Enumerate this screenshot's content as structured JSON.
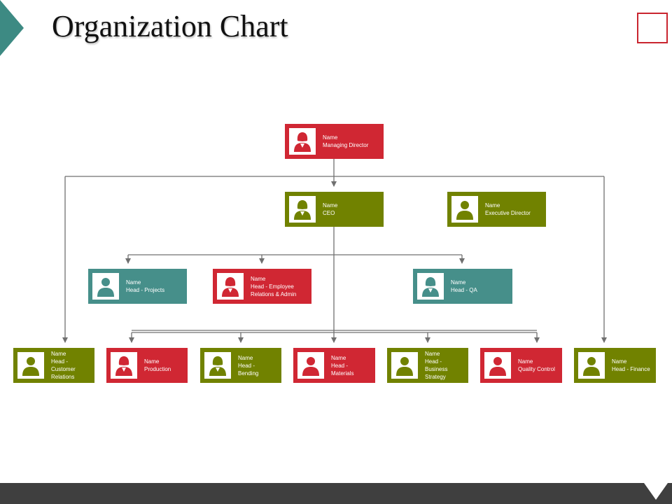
{
  "slide": {
    "title": "Organization Chart"
  },
  "colors": {
    "red": "#d02733",
    "olive": "#718200",
    "teal": "#468f8a",
    "line": "#707070"
  },
  "org": {
    "nodes": [
      {
        "id": "md",
        "name": "Name",
        "role": [
          "Managing Director"
        ],
        "color": "red",
        "icon": "female-person-icon"
      },
      {
        "id": "ceo",
        "name": "Name",
        "role": [
          "CEO"
        ],
        "color": "olive",
        "icon": "female-person-icon"
      },
      {
        "id": "ed",
        "name": "Name",
        "role": [
          "Executive Director"
        ],
        "color": "olive",
        "icon": "male-person-icon"
      },
      {
        "id": "projects",
        "name": "Name",
        "role": [
          "Head - Projects"
        ],
        "color": "teal",
        "icon": "male-person-icon"
      },
      {
        "id": "employee",
        "name": "Name",
        "role": [
          "Head - Employee",
          "Relations & Admin"
        ],
        "color": "red",
        "icon": "female-person-icon"
      },
      {
        "id": "qa",
        "name": "Name",
        "role": [
          "Head - QA"
        ],
        "color": "teal",
        "icon": "female-person-icon"
      },
      {
        "id": "customer",
        "name": "Name",
        "role": [
          "Head -",
          "Customer",
          "Relations"
        ],
        "color": "olive",
        "icon": "male-person-icon"
      },
      {
        "id": "production",
        "name": "Name",
        "role": [
          "Production"
        ],
        "color": "red",
        "icon": "female-person-icon"
      },
      {
        "id": "bending",
        "name": "Name",
        "role": [
          "Head -",
          "Bending"
        ],
        "color": "olive",
        "icon": "female-person-icon"
      },
      {
        "id": "materials",
        "name": "Name",
        "role": [
          "Head -",
          "Materials"
        ],
        "color": "red",
        "icon": "male-person-icon"
      },
      {
        "id": "business",
        "name": "Name",
        "role": [
          "Head -",
          "Business",
          "Strategy"
        ],
        "color": "olive",
        "icon": "male-person-icon"
      },
      {
        "id": "quality",
        "name": "Name",
        "role": [
          "Quality Control"
        ],
        "color": "red",
        "icon": "male-person-icon"
      },
      {
        "id": "finance",
        "name": "Name",
        "role": [
          "Head - Finance"
        ],
        "color": "olive",
        "icon": "male-person-icon"
      }
    ]
  }
}
